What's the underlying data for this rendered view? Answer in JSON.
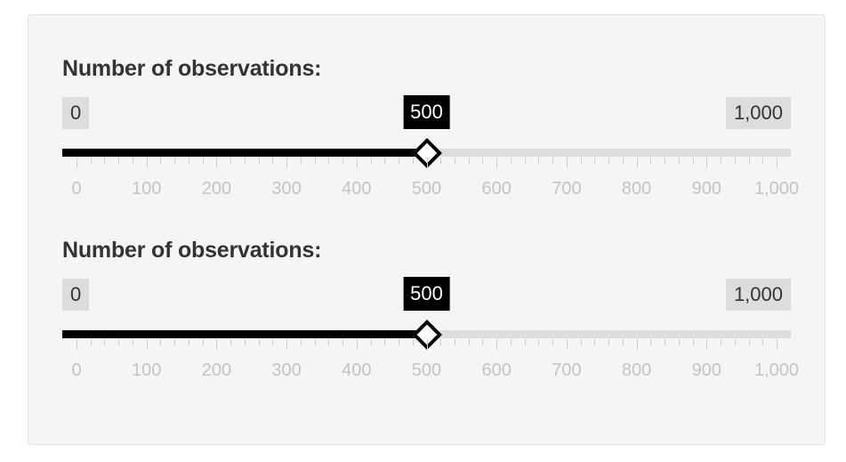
{
  "sliders": [
    {
      "label": "Number of observations:",
      "min_label": "0",
      "max_label": "1,000",
      "current_label": "500",
      "min": 0,
      "max": 1000,
      "value": 500,
      "step_minor": 20,
      "tick_labels": [
        "0",
        "100",
        "200",
        "300",
        "400",
        "500",
        "600",
        "700",
        "800",
        "900",
        "1,000"
      ]
    },
    {
      "label": "Number of observations:",
      "min_label": "0",
      "max_label": "1,000",
      "current_label": "500",
      "min": 0,
      "max": 1000,
      "value": 500,
      "step_minor": 20,
      "tick_labels": [
        "0",
        "100",
        "200",
        "300",
        "400",
        "500",
        "600",
        "700",
        "800",
        "900",
        "1,000"
      ]
    }
  ],
  "colors": {
    "panel_bg": "#f5f5f5",
    "track_bg": "#dddddd",
    "track_fill": "#000000",
    "tick_text": "#c4c4c4"
  }
}
